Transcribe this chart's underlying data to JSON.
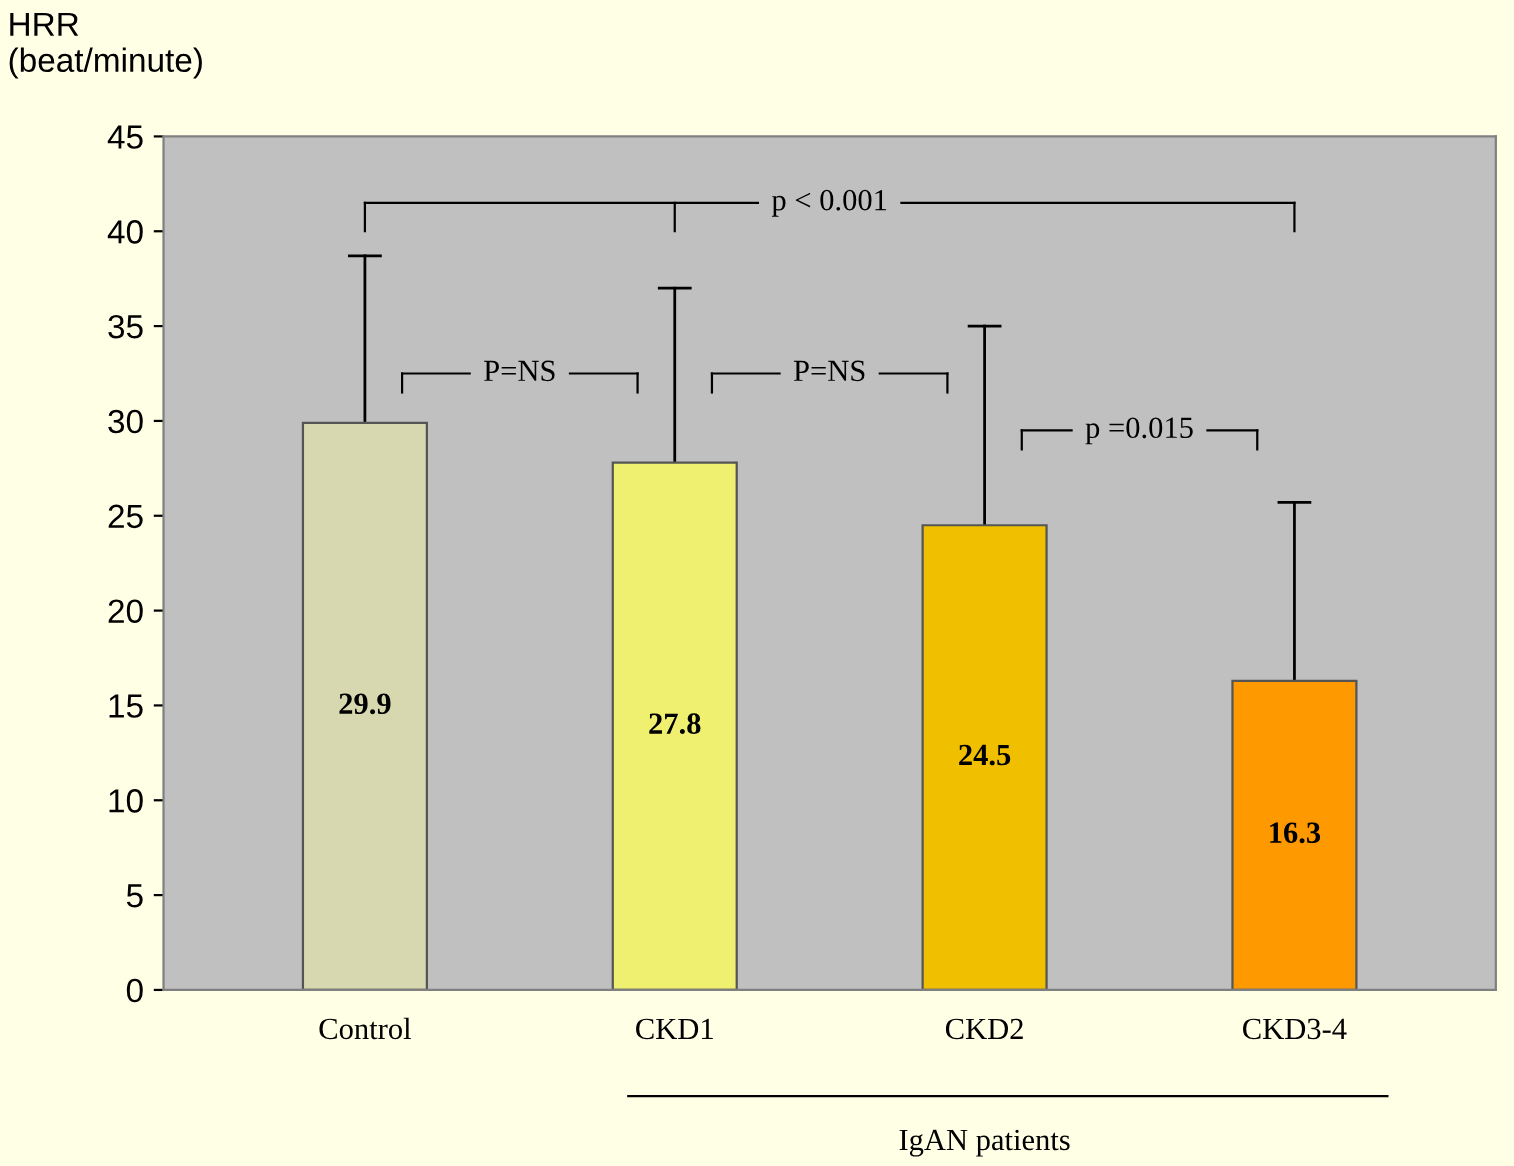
{
  "chart_data": {
    "type": "bar",
    "ylabel": "HRR\n(beat/minute)",
    "categories": [
      "Control",
      "CKD1",
      "CKD2",
      "CKD3-4"
    ],
    "values": [
      29.9,
      27.8,
      24.5,
      16.3
    ],
    "colors": [
      "#d8d8b0",
      "#f0f070",
      "#f0c000",
      "#ff9900"
    ],
    "errors": [
      [
        29.9,
        38.7
      ],
      [
        27.8,
        37.0
      ],
      [
        24.5,
        35.0
      ],
      [
        16.3,
        25.7
      ]
    ],
    "ylim": [
      0,
      45
    ],
    "yticks": [
      0,
      5,
      10,
      15,
      20,
      25,
      30,
      35,
      40,
      45
    ],
    "data_labels": true,
    "grid": false,
    "annotations": [
      "p < 0.001",
      "P=NS",
      "P=NS",
      "p =0.015",
      "IgAN patients"
    ]
  }
}
